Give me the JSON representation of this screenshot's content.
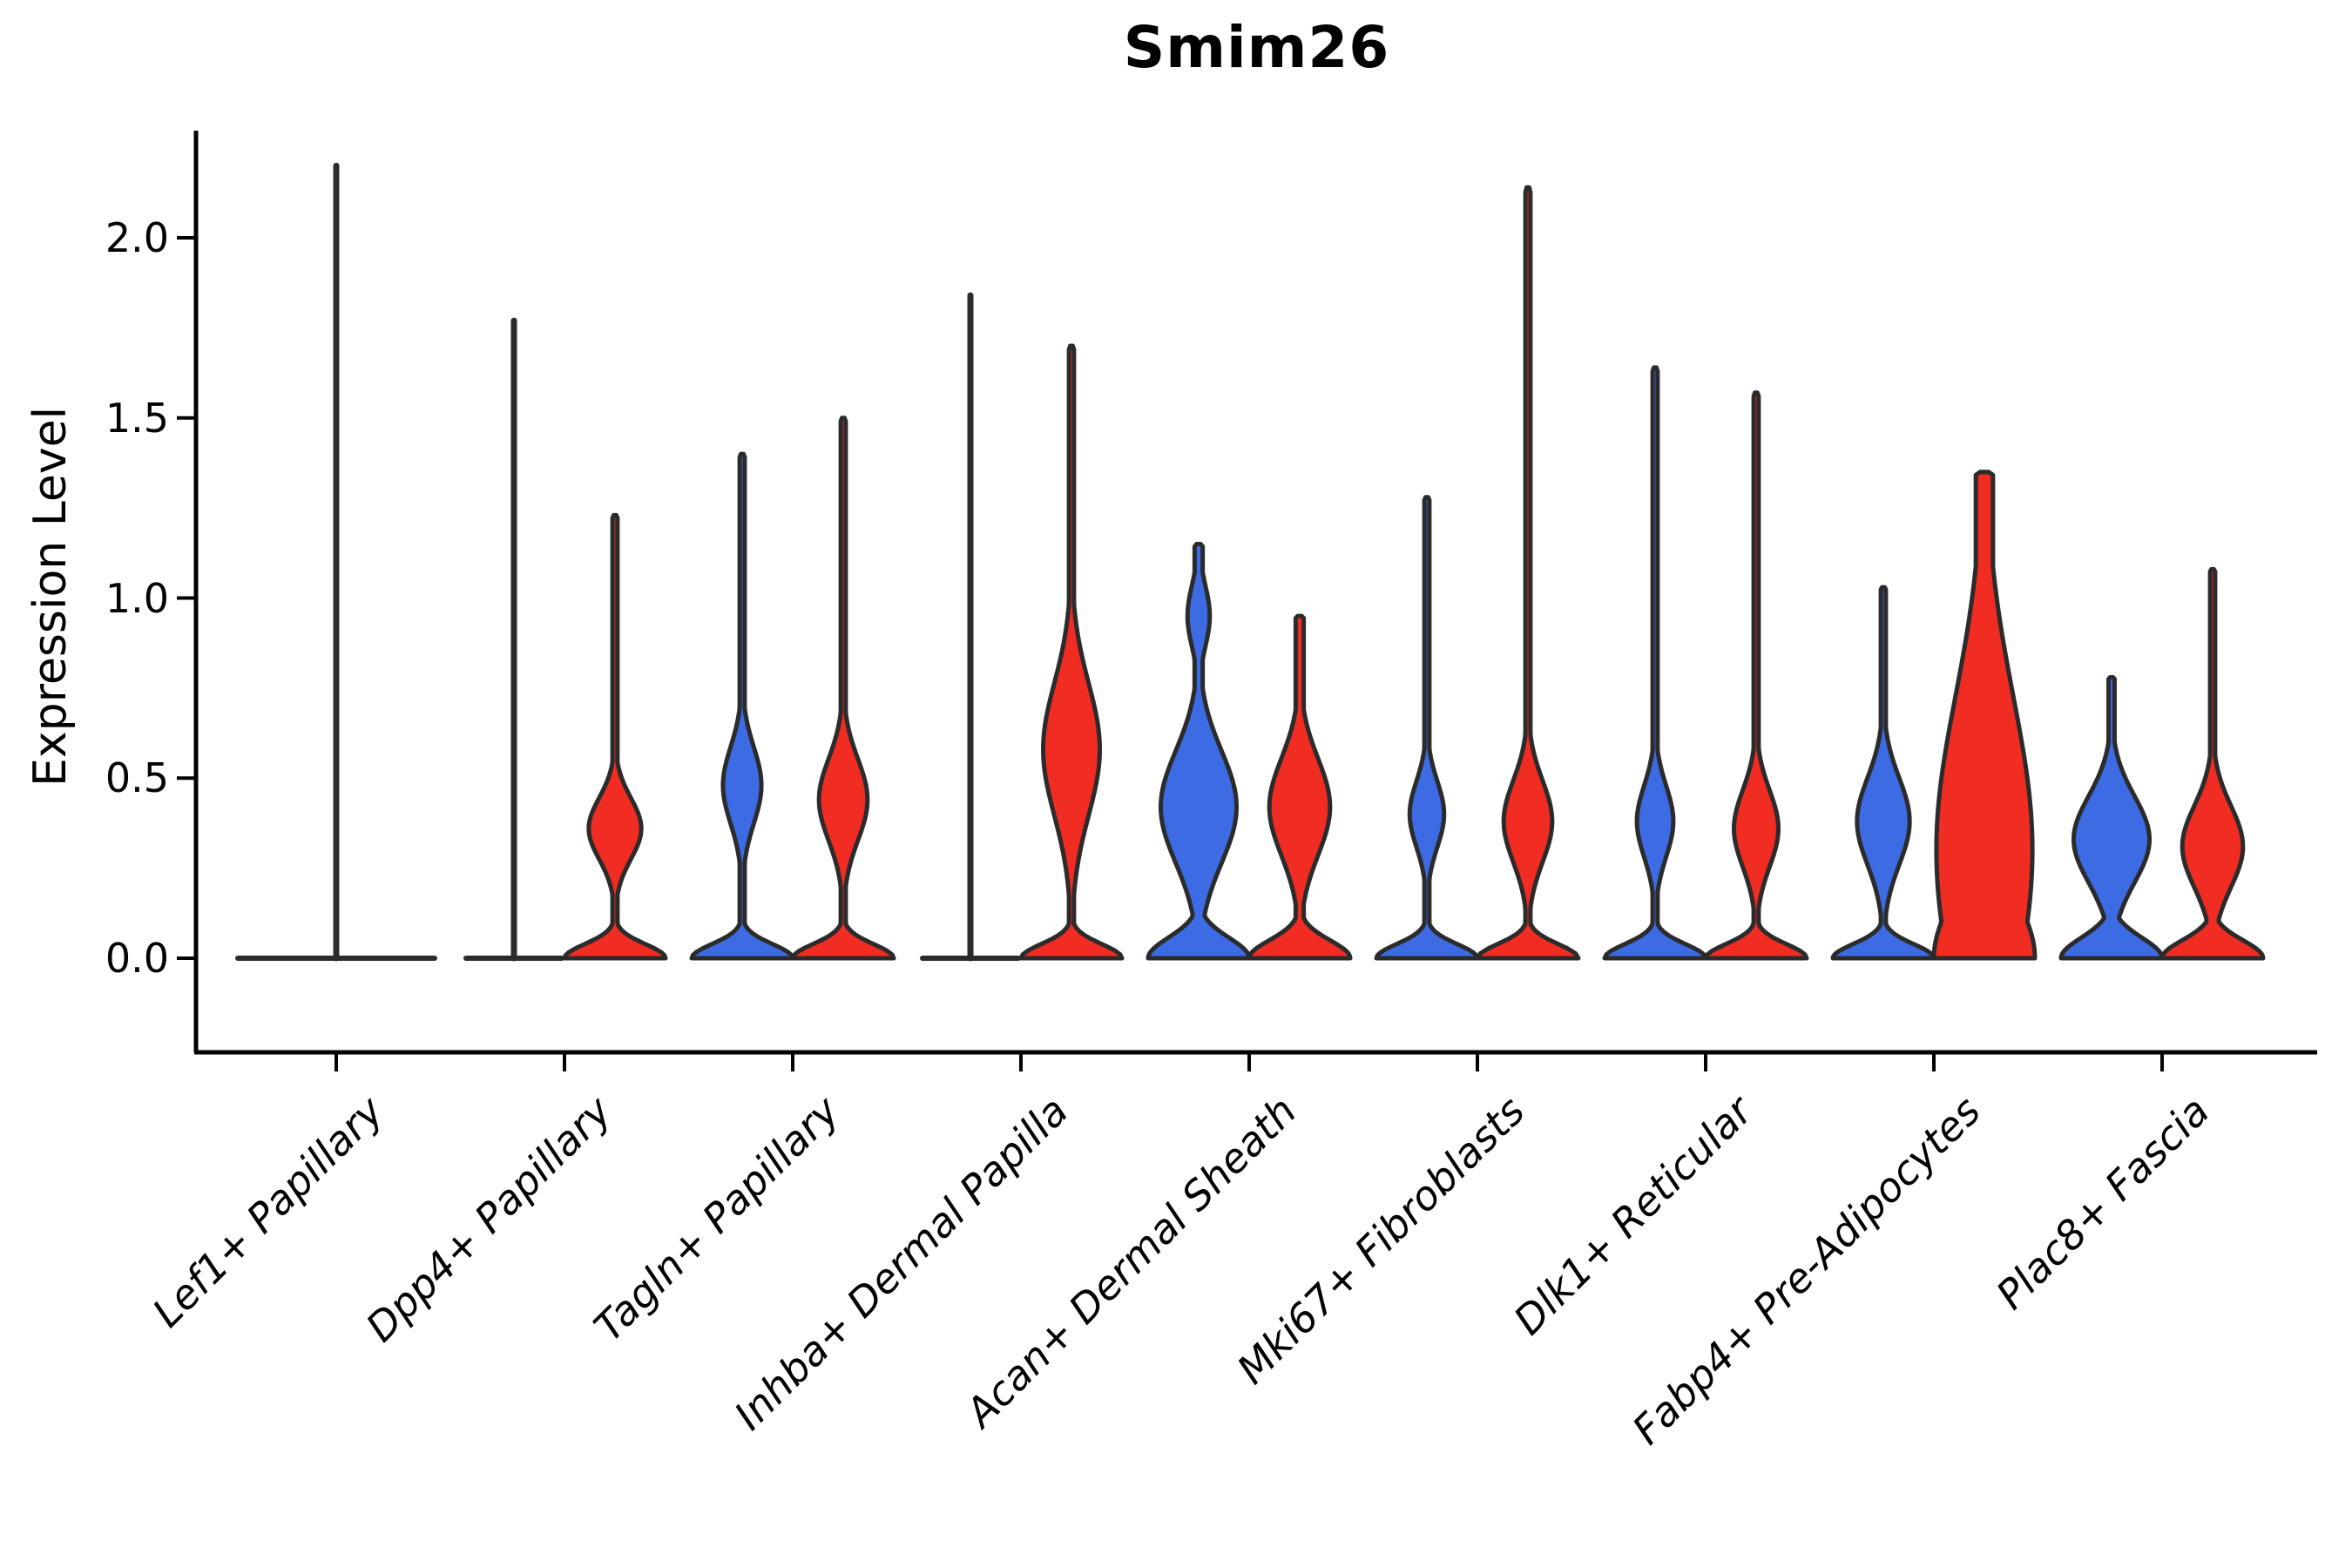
{
  "title": "Smim26",
  "axes": {
    "ylabel": "Expression Level",
    "ytick_labels": [
      "0.0",
      "0.5",
      "1.0",
      "1.5",
      "2.0"
    ],
    "xtick_labels": [
      "Lef1+ Papillary",
      "Dpp4+ Papillary",
      "Tagln+ Papillary",
      "Inhba+ Dermal Papilla",
      "Acan+ Dermal Sheath",
      "Mki67+ Fibroblasts",
      "Dlk1+ Reticular",
      "Fabp4+ Pre-Adipocytes",
      "Plac8+ Fascia"
    ],
    "legend": "none visible"
  },
  "chart_data": {
    "type": "violin",
    "title": "Smim26",
    "xlabel": "",
    "ylabel": "Expression Level",
    "ylim": [
      -0.26,
      2.3
    ],
    "yticks": [
      0.0,
      0.5,
      1.0,
      1.5,
      2.0
    ],
    "grid": false,
    "split_violins_per_category": 2,
    "colors": {
      "blue_series": "#3d6be3",
      "red_series": "#f02c23",
      "edge": "#2b2b2b",
      "axis": "#000000"
    },
    "categories": [
      "Lef1+ Papillary",
      "Dpp4+ Papillary",
      "Tagln+ Papillary",
      "Inhba+ Dermal Papilla",
      "Acan+ Dermal Sheath",
      "Mki67+ Fibroblasts",
      "Dlk1+ Reticular",
      "Fabp4+ Pre-Adipocytes",
      "Plac8+ Fascia"
    ],
    "groups": [
      {
        "category": "Lef1+ Papillary",
        "violins": [
          {
            "pos": "center",
            "color": "none",
            "span": 2,
            "collapsed": true,
            "max": 2.2
          }
        ]
      },
      {
        "category": "Dpp4+ Papillary",
        "violins": [
          {
            "pos": "left",
            "color": "blue",
            "collapsed": true,
            "max": 1.77
          },
          {
            "pos": "right",
            "color": "red",
            "max": 1.23,
            "base_sigma": 0.055,
            "stem": 0.05,
            "bulges": [
              {
                "c": 0.36,
                "s": 0.12,
                "a": 0.52
              }
            ]
          }
        ]
      },
      {
        "category": "Tagln+ Papillary",
        "violins": [
          {
            "pos": "left",
            "color": "blue",
            "max": 1.4,
            "base_sigma": 0.055,
            "stem": 0.05,
            "bulges": [
              {
                "c": 0.48,
                "s": 0.15,
                "a": 0.38
              }
            ]
          },
          {
            "pos": "right",
            "color": "red",
            "max": 1.5,
            "base_sigma": 0.055,
            "stem": 0.05,
            "bulges": [
              {
                "c": 0.44,
                "s": 0.16,
                "a": 0.48
              }
            ]
          }
        ]
      },
      {
        "category": "Inhba+ Dermal Papilla",
        "violins": [
          {
            "pos": "left",
            "color": "blue",
            "collapsed": true,
            "max": 1.84
          },
          {
            "pos": "right",
            "color": "red",
            "max": 1.7,
            "base_sigma": 0.055,
            "stem": 0.05,
            "bulges": [
              {
                "c": 0.58,
                "s": 0.26,
                "a": 0.56
              }
            ]
          }
        ]
      },
      {
        "category": "Acan+ Dermal Sheath",
        "violins": [
          {
            "pos": "left",
            "color": "blue",
            "max": 1.15,
            "base_sigma": 0.08,
            "stem": 0.08,
            "bulges": [
              {
                "c": 0.42,
                "s": 0.22,
                "a": 0.75
              },
              {
                "c": 0.95,
                "s": 0.12,
                "a": 0.22
              }
            ]
          },
          {
            "pos": "right",
            "color": "red",
            "max": 0.95,
            "base_sigma": 0.07,
            "stem": 0.08,
            "bulges": [
              {
                "c": 0.42,
                "s": 0.19,
                "a": 0.6
              }
            ]
          }
        ]
      },
      {
        "category": "Mki67+ Fibroblasts",
        "violins": [
          {
            "pos": "left",
            "color": "blue",
            "max": 1.28,
            "base_sigma": 0.055,
            "stem": 0.05,
            "bulges": [
              {
                "c": 0.4,
                "s": 0.13,
                "a": 0.34
              }
            ]
          },
          {
            "pos": "right",
            "color": "red",
            "max": 2.14,
            "base_sigma": 0.055,
            "stem": 0.05,
            "bulges": [
              {
                "c": 0.38,
                "s": 0.16,
                "a": 0.48
              }
            ]
          }
        ]
      },
      {
        "category": "Dlk1+ Reticular",
        "violins": [
          {
            "pos": "left",
            "color": "blue",
            "max": 1.64,
            "base_sigma": 0.055,
            "stem": 0.05,
            "bulges": [
              {
                "c": 0.38,
                "s": 0.14,
                "a": 0.36
              }
            ]
          },
          {
            "pos": "right",
            "color": "red",
            "max": 1.57,
            "base_sigma": 0.055,
            "stem": 0.05,
            "bulges": [
              {
                "c": 0.36,
                "s": 0.15,
                "a": 0.44
              }
            ]
          }
        ]
      },
      {
        "category": "Fabp4+ Pre-Adipocytes",
        "violins": [
          {
            "pos": "left",
            "color": "blue",
            "max": 1.03,
            "base_sigma": 0.055,
            "stem": 0.05,
            "bulges": [
              {
                "c": 0.38,
                "s": 0.17,
                "a": 0.52
              }
            ]
          },
          {
            "pos": "right",
            "color": "red",
            "max": 1.35,
            "base_sigma": 0.25,
            "stem": 0.17,
            "bulges": [
              {
                "c": 0.3,
                "s": 0.6,
                "a": 0.95
              }
            ]
          }
        ]
      },
      {
        "category": "Plac8+ Fascia",
        "violins": [
          {
            "pos": "left",
            "color": "blue",
            "max": 0.78,
            "base_sigma": 0.08,
            "stem": 0.06,
            "bulges": [
              {
                "c": 0.33,
                "s": 0.17,
                "a": 0.75
              }
            ]
          },
          {
            "pos": "right",
            "color": "red",
            "max": 1.08,
            "base_sigma": 0.07,
            "stem": 0.05,
            "bulges": [
              {
                "c": 0.31,
                "s": 0.16,
                "a": 0.6
              }
            ]
          }
        ]
      }
    ]
  }
}
